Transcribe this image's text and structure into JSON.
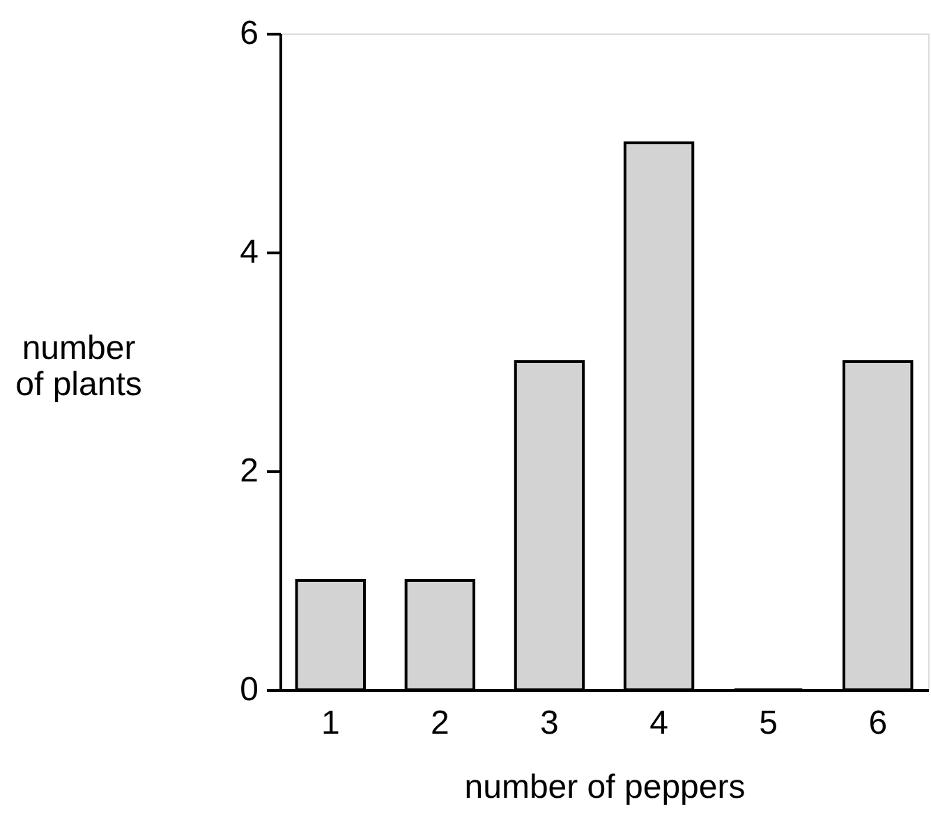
{
  "chart_data": {
    "type": "bar",
    "xlabel": "number of peppers",
    "ylabel": "number\nof plants",
    "categories": [
      "1",
      "2",
      "3",
      "4",
      "5",
      "6"
    ],
    "values": [
      1,
      1,
      3,
      5,
      0,
      3
    ],
    "color": "#d3d3d3",
    "ylim": [
      0,
      6
    ],
    "yticks": [
      0,
      2,
      4,
      6
    ],
    "grid": false
  }
}
